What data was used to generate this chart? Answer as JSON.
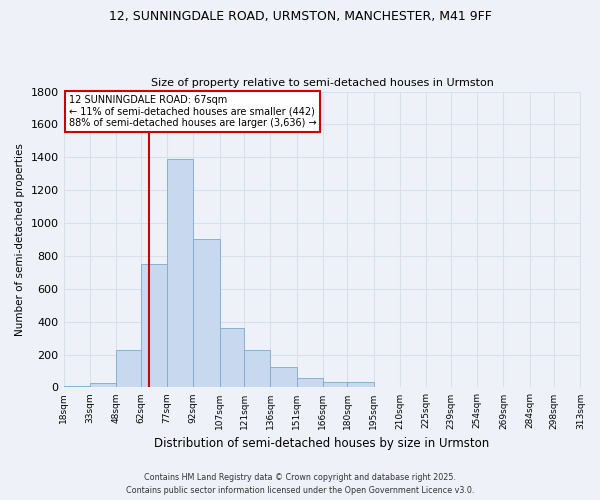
{
  "title_line1": "12, SUNNINGDALE ROAD, URMSTON, MANCHESTER, M41 9FF",
  "title_line2": "Size of property relative to semi-detached houses in Urmston",
  "xlabel": "Distribution of semi-detached houses by size in Urmston",
  "ylabel": "Number of semi-detached properties",
  "property_size": 67,
  "annotation_title": "12 SUNNINGDALE ROAD: 67sqm",
  "annotation_line1": "← 11% of semi-detached houses are smaller (442)",
  "annotation_line2": "88% of semi-detached houses are larger (3,636) →",
  "bar_color": "#c8d8ee",
  "bar_edge_color": "#7aaad0",
  "vline_color": "#cc0000",
  "annotation_box_color": "#cc0000",
  "background_color": "#eef2f8",
  "grid_color": "#d8e0ec",
  "bins": [
    18,
    33,
    48,
    62,
    77,
    92,
    107,
    121,
    136,
    151,
    166,
    180,
    195,
    210,
    225,
    239,
    254,
    269,
    284,
    298,
    313
  ],
  "bin_labels": [
    "18sqm",
    "33sqm",
    "48sqm",
    "62sqm",
    "77sqm",
    "92sqm",
    "107sqm",
    "121sqm",
    "136sqm",
    "151sqm",
    "166sqm",
    "180sqm",
    "195sqm",
    "210sqm",
    "225sqm",
    "239sqm",
    "254sqm",
    "269sqm",
    "284sqm",
    "298sqm",
    "313sqm"
  ],
  "counts": [
    10,
    25,
    225,
    750,
    1390,
    900,
    360,
    225,
    125,
    60,
    30,
    30,
    5,
    5,
    5,
    2,
    2,
    2,
    2,
    2
  ],
  "ylim": [
    0,
    1800
  ],
  "yticks": [
    0,
    200,
    400,
    600,
    800,
    1000,
    1200,
    1400,
    1600,
    1800
  ],
  "footnote1": "Contains HM Land Registry data © Crown copyright and database right 2025.",
  "footnote2": "Contains public sector information licensed under the Open Government Licence v3.0."
}
